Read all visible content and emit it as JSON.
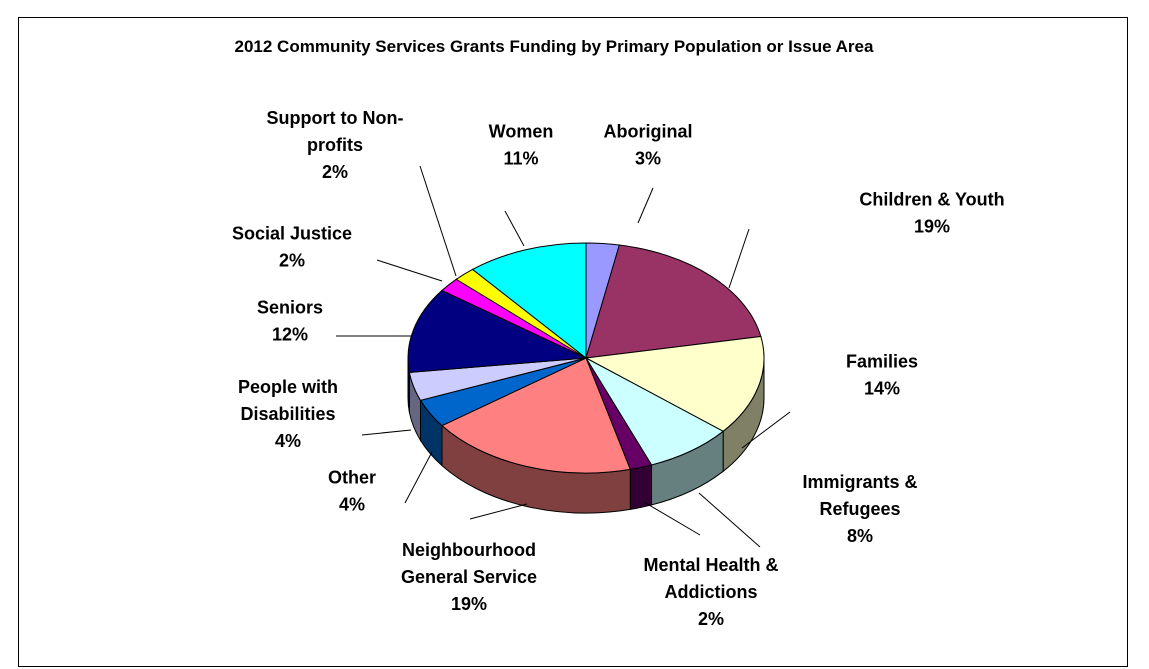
{
  "chart_data": {
    "type": "pie",
    "title": "2012 Community Services Grants Funding by Primary Population or Issue Area",
    "slices": [
      {
        "label_lines": [
          "Aboriginal"
        ],
        "value_label": "3%",
        "value": 3,
        "color": "#9999ff"
      },
      {
        "label_lines": [
          "Children & Youth"
        ],
        "value_label": "19%",
        "value": 19,
        "color": "#993366"
      },
      {
        "label_lines": [
          "Families"
        ],
        "value_label": "14%",
        "value": 14,
        "color": "#ffffcc"
      },
      {
        "label_lines": [
          "Immigrants &",
          "Refugees"
        ],
        "value_label": "8%",
        "value": 8,
        "color": "#ccffff"
      },
      {
        "label_lines": [
          "Mental Health &",
          "Addictions"
        ],
        "value_label": "2%",
        "value": 2,
        "color": "#660066"
      },
      {
        "label_lines": [
          "Neighbourhood",
          "General Service"
        ],
        "value_label": "19%",
        "value": 19,
        "color": "#ff8080"
      },
      {
        "label_lines": [
          "Other"
        ],
        "value_label": "4%",
        "value": 4,
        "color": "#0066cc"
      },
      {
        "label_lines": [
          "People with",
          "Disabilities"
        ],
        "value_label": "4%",
        "value": 4,
        "color": "#ccccff"
      },
      {
        "label_lines": [
          "Seniors"
        ],
        "value_label": "12%",
        "value": 12,
        "color": "#000080"
      },
      {
        "label_lines": [
          "Social Justice"
        ],
        "value_label": "2%",
        "value": 2,
        "color": "#ff00ff"
      },
      {
        "label_lines": [
          "Support to Non-",
          "profits"
        ],
        "value_label": "2%",
        "value": 2,
        "color": "#ffff00"
      },
      {
        "label_lines": [
          "Women"
        ],
        "value_label": "11%",
        "value": 11,
        "color": "#00ffff"
      }
    ]
  }
}
